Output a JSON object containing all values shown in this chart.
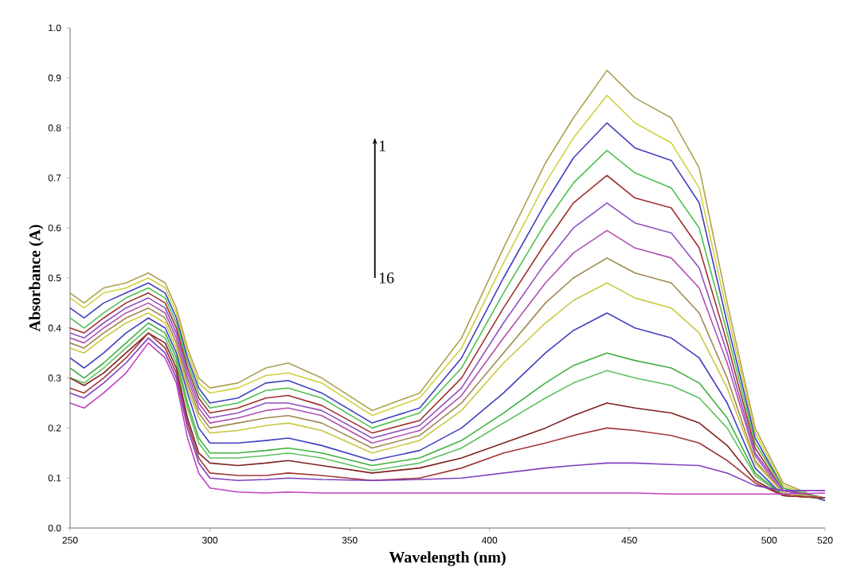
{
  "chart_data": {
    "type": "line",
    "xlabel": "Wavelength (nm)",
    "ylabel": "Absorbance (A)",
    "annotations": [
      "1",
      "16"
    ],
    "xlim": [
      250,
      520
    ],
    "ylim": [
      0,
      1
    ],
    "xticks": [
      250,
      300,
      350,
      400,
      450,
      500,
      520
    ],
    "yticks": [
      {
        "value": 0,
        "label": "0.0"
      },
      0.1,
      0.2,
      0.3,
      0.4,
      0.5,
      0.6,
      0.7,
      0.8,
      0.9,
      {
        "value": 1,
        "label": "1.0"
      }
    ],
    "x": [
      250,
      255,
      262,
      270,
      278,
      284,
      288,
      292,
      296,
      300,
      310,
      320,
      328,
      340,
      358,
      375,
      390,
      405,
      420,
      430,
      442,
      452,
      465,
      475,
      485,
      495,
      505,
      520
    ],
    "series": [
      {
        "color": "#b0a050",
        "values": [
          0.47,
          0.45,
          0.48,
          0.49,
          0.51,
          0.49,
          0.44,
          0.36,
          0.3,
          0.28,
          0.29,
          0.32,
          0.33,
          0.3,
          0.235,
          0.27,
          0.38,
          0.56,
          0.73,
          0.82,
          0.915,
          0.86,
          0.82,
          0.72,
          0.45,
          0.2,
          0.09,
          0.055
        ]
      },
      {
        "color": "#d0d040",
        "values": [
          0.46,
          0.44,
          0.47,
          0.48,
          0.5,
          0.48,
          0.43,
          0.35,
          0.29,
          0.27,
          0.28,
          0.305,
          0.31,
          0.29,
          0.225,
          0.26,
          0.36,
          0.53,
          0.69,
          0.78,
          0.865,
          0.81,
          0.77,
          0.68,
          0.43,
          0.19,
          0.085,
          0.055
        ]
      },
      {
        "color": "#4040c0",
        "values": [
          0.44,
          0.42,
          0.45,
          0.47,
          0.49,
          0.47,
          0.42,
          0.34,
          0.28,
          0.25,
          0.26,
          0.29,
          0.295,
          0.27,
          0.21,
          0.24,
          0.34,
          0.5,
          0.65,
          0.74,
          0.81,
          0.76,
          0.735,
          0.65,
          0.41,
          0.18,
          0.08,
          0.055
        ]
      },
      {
        "color": "#50c050",
        "values": [
          0.42,
          0.4,
          0.43,
          0.46,
          0.48,
          0.46,
          0.41,
          0.33,
          0.27,
          0.24,
          0.25,
          0.275,
          0.28,
          0.26,
          0.2,
          0.23,
          0.32,
          0.47,
          0.61,
          0.69,
          0.755,
          0.71,
          0.68,
          0.6,
          0.39,
          0.17,
          0.08,
          0.06
        ]
      },
      {
        "color": "#a03030",
        "values": [
          0.4,
          0.39,
          0.42,
          0.45,
          0.47,
          0.45,
          0.4,
          0.32,
          0.26,
          0.23,
          0.24,
          0.26,
          0.265,
          0.245,
          0.19,
          0.215,
          0.3,
          0.44,
          0.57,
          0.65,
          0.705,
          0.66,
          0.64,
          0.56,
          0.37,
          0.16,
          0.075,
          0.06
        ]
      },
      {
        "color": "#9050c0",
        "values": [
          0.39,
          0.38,
          0.41,
          0.44,
          0.46,
          0.44,
          0.39,
          0.31,
          0.25,
          0.22,
          0.23,
          0.25,
          0.25,
          0.235,
          0.18,
          0.205,
          0.28,
          0.41,
          0.53,
          0.6,
          0.65,
          0.61,
          0.59,
          0.52,
          0.35,
          0.15,
          0.075,
          0.06
        ]
      },
      {
        "color": "#b050b0",
        "values": [
          0.38,
          0.37,
          0.4,
          0.43,
          0.45,
          0.43,
          0.38,
          0.3,
          0.24,
          0.21,
          0.22,
          0.235,
          0.24,
          0.225,
          0.17,
          0.195,
          0.265,
          0.38,
          0.49,
          0.55,
          0.595,
          0.56,
          0.54,
          0.48,
          0.33,
          0.145,
          0.07,
          0.06
        ]
      },
      {
        "color": "#a08850",
        "values": [
          0.37,
          0.36,
          0.39,
          0.42,
          0.44,
          0.42,
          0.37,
          0.29,
          0.23,
          0.2,
          0.21,
          0.22,
          0.225,
          0.21,
          0.16,
          0.185,
          0.25,
          0.35,
          0.45,
          0.5,
          0.54,
          0.51,
          0.49,
          0.43,
          0.3,
          0.135,
          0.07,
          0.06
        ]
      },
      {
        "color": "#c8c840",
        "values": [
          0.36,
          0.35,
          0.38,
          0.41,
          0.43,
          0.41,
          0.36,
          0.28,
          0.22,
          0.19,
          0.195,
          0.205,
          0.21,
          0.195,
          0.15,
          0.175,
          0.235,
          0.33,
          0.41,
          0.455,
          0.49,
          0.46,
          0.44,
          0.39,
          0.28,
          0.13,
          0.07,
          0.06
        ]
      },
      {
        "color": "#4040c0",
        "values": [
          0.34,
          0.32,
          0.35,
          0.39,
          0.42,
          0.4,
          0.35,
          0.27,
          0.2,
          0.17,
          0.17,
          0.175,
          0.18,
          0.165,
          0.135,
          0.155,
          0.2,
          0.27,
          0.35,
          0.395,
          0.43,
          0.4,
          0.38,
          0.34,
          0.25,
          0.12,
          0.065,
          0.06
        ]
      },
      {
        "color": "#40b040",
        "values": [
          0.32,
          0.3,
          0.33,
          0.37,
          0.41,
          0.39,
          0.34,
          0.25,
          0.18,
          0.15,
          0.15,
          0.155,
          0.16,
          0.15,
          0.125,
          0.14,
          0.175,
          0.23,
          0.29,
          0.325,
          0.35,
          0.335,
          0.32,
          0.29,
          0.22,
          0.11,
          0.065,
          0.06
        ]
      },
      {
        "color": "#60c060",
        "values": [
          0.3,
          0.29,
          0.32,
          0.36,
          0.4,
          0.38,
          0.33,
          0.24,
          0.17,
          0.14,
          0.14,
          0.145,
          0.15,
          0.14,
          0.115,
          0.13,
          0.16,
          0.21,
          0.26,
          0.29,
          0.315,
          0.3,
          0.285,
          0.26,
          0.2,
          0.105,
          0.065,
          0.06
        ]
      },
      {
        "color": "#802020",
        "values": [
          0.3,
          0.285,
          0.31,
          0.35,
          0.39,
          0.37,
          0.32,
          0.22,
          0.15,
          0.13,
          0.125,
          0.13,
          0.135,
          0.125,
          0.11,
          0.12,
          0.14,
          0.17,
          0.2,
          0.225,
          0.25,
          0.24,
          0.23,
          0.21,
          0.165,
          0.095,
          0.065,
          0.06
        ]
      },
      {
        "color": "#a03838",
        "values": [
          0.28,
          0.27,
          0.3,
          0.34,
          0.39,
          0.36,
          0.31,
          0.21,
          0.14,
          0.11,
          0.105,
          0.105,
          0.11,
          0.105,
          0.095,
          0.1,
          0.12,
          0.15,
          0.17,
          0.185,
          0.2,
          0.195,
          0.185,
          0.17,
          0.135,
          0.09,
          0.065,
          0.06
        ]
      },
      {
        "color": "#8040c0",
        "values": [
          0.27,
          0.26,
          0.29,
          0.33,
          0.38,
          0.35,
          0.3,
          0.2,
          0.13,
          0.1,
          0.095,
          0.097,
          0.1,
          0.097,
          0.095,
          0.097,
          0.1,
          0.11,
          0.12,
          0.125,
          0.13,
          0.13,
          0.127,
          0.125,
          0.11,
          0.085,
          0.075,
          0.075
        ]
      },
      {
        "color": "#c040c0",
        "values": [
          0.25,
          0.24,
          0.27,
          0.31,
          0.37,
          0.34,
          0.29,
          0.18,
          0.11,
          0.08,
          0.072,
          0.07,
          0.072,
          0.07,
          0.07,
          0.07,
          0.07,
          0.07,
          0.07,
          0.07,
          0.07,
          0.07,
          0.068,
          0.068,
          0.068,
          0.068,
          0.068,
          0.07
        ]
      }
    ]
  }
}
